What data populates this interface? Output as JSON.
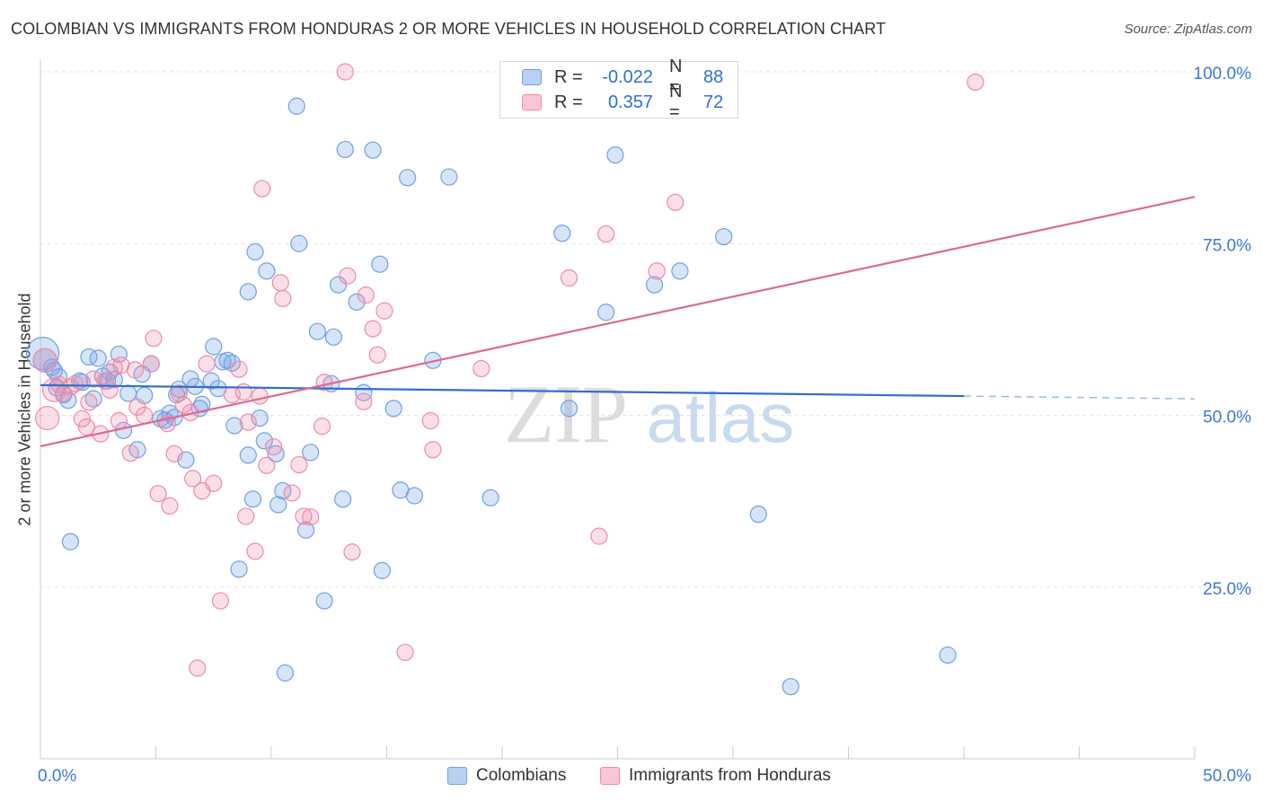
{
  "title": "COLOMBIAN VS IMMIGRANTS FROM HONDURAS 2 OR MORE VEHICLES IN HOUSEHOLD CORRELATION CHART",
  "source": "Source: ZipAtlas.com",
  "watermark": {
    "part1": "ZIP",
    "part2": "atlas"
  },
  "legend": {
    "rows": [
      {
        "r_label": "R =",
        "r_value": "-0.022",
        "n_label": "N =",
        "n_value": "88",
        "color": "#6fa0e8"
      },
      {
        "r_label": "R =",
        "r_value": "0.357",
        "n_label": "N =",
        "n_value": "72",
        "color": "#f08aa8"
      }
    ]
  },
  "bottom_legend": {
    "series1": "Colombians",
    "series2": "Immigrants from Honduras"
  },
  "chart_data": {
    "type": "scatter",
    "title": "COLOMBIAN VS IMMIGRANTS FROM HONDURAS 2 OR MORE VEHICLES IN HOUSEHOLD CORRELATION CHART",
    "xlabel": "",
    "ylabel": "2 or more Vehicles in Household",
    "xlim": [
      0,
      50
    ],
    "ylim": [
      0,
      104
    ],
    "x_tick_labels": [
      "0.0%",
      "50.0%"
    ],
    "y_ticks": [
      25,
      50,
      75,
      100
    ],
    "y_tick_labels": [
      "25.0%",
      "50.0%",
      "75.0%",
      "100.0%"
    ],
    "grid": true,
    "series": [
      {
        "name": "Colombians",
        "color": "#6fa0e8",
        "trend": {
          "x0": 0,
          "y0": 54.4,
          "x1": 40,
          "y1": 52.8,
          "dash_to_x": 50,
          "dash_to_y": 52.4
        },
        "points": [
          [
            0.1,
            59.0,
            3
          ],
          [
            0.2,
            58.0,
            2
          ],
          [
            0.5,
            57.0,
            1
          ],
          [
            0.6,
            56.5,
            1
          ],
          [
            0.8,
            55.6,
            1
          ],
          [
            1.0,
            53.0,
            1
          ],
          [
            1.2,
            52.2,
            1
          ],
          [
            1.3,
            31.6,
            1
          ],
          [
            1.7,
            55.0,
            1
          ],
          [
            1.8,
            54.8,
            1
          ],
          [
            2.1,
            58.5,
            1
          ],
          [
            2.3,
            52.4,
            1
          ],
          [
            2.5,
            58.3,
            1
          ],
          [
            2.7,
            55.7,
            1
          ],
          [
            3.0,
            56.3,
            1
          ],
          [
            3.2,
            55.2,
            1
          ],
          [
            3.4,
            58.9,
            1
          ],
          [
            3.6,
            47.8,
            1
          ],
          [
            3.8,
            53.2,
            1
          ],
          [
            4.2,
            45.0,
            1
          ],
          [
            4.4,
            56.0,
            1
          ],
          [
            4.5,
            52.9,
            1
          ],
          [
            4.8,
            57.5,
            1
          ],
          [
            5.2,
            49.5,
            1
          ],
          [
            5.4,
            49.3,
            1
          ],
          [
            5.6,
            50.3,
            1
          ],
          [
            5.8,
            49.7,
            1
          ],
          [
            5.9,
            53.0,
            1
          ],
          [
            6.0,
            53.8,
            1
          ],
          [
            6.3,
            43.5,
            1
          ],
          [
            6.5,
            55.3,
            1
          ],
          [
            6.7,
            54.2,
            1
          ],
          [
            6.9,
            51.0,
            1
          ],
          [
            7.0,
            51.6,
            1
          ],
          [
            7.4,
            55.0,
            1
          ],
          [
            7.5,
            60.0,
            1
          ],
          [
            7.7,
            53.9,
            1
          ],
          [
            7.9,
            57.8,
            1
          ],
          [
            8.1,
            58.0,
            1
          ],
          [
            8.3,
            57.6,
            1
          ],
          [
            8.4,
            48.5,
            1
          ],
          [
            8.6,
            27.6,
            1
          ],
          [
            9.0,
            68.0,
            1
          ],
          [
            9.2,
            37.8,
            1
          ],
          [
            9.0,
            44.2,
            1
          ],
          [
            9.3,
            73.8,
            1
          ],
          [
            9.5,
            49.6,
            1
          ],
          [
            9.8,
            71.0,
            1
          ],
          [
            9.7,
            46.3,
            1
          ],
          [
            10.2,
            44.4,
            1
          ],
          [
            10.3,
            37.0,
            1
          ],
          [
            10.5,
            39.0,
            1
          ],
          [
            10.6,
            12.5,
            1
          ],
          [
            11.1,
            95.0,
            1
          ],
          [
            11.2,
            75.0,
            1
          ],
          [
            11.5,
            33.3,
            1
          ],
          [
            11.7,
            44.6,
            1
          ],
          [
            12.0,
            62.2,
            1
          ],
          [
            12.3,
            23.0,
            1
          ],
          [
            12.6,
            54.6,
            1
          ],
          [
            12.7,
            61.4,
            1
          ],
          [
            12.9,
            69.0,
            1
          ],
          [
            13.1,
            37.8,
            1
          ],
          [
            13.2,
            88.7,
            1
          ],
          [
            13.7,
            66.5,
            1
          ],
          [
            14.0,
            53.3,
            1
          ],
          [
            14.4,
            88.6,
            1
          ],
          [
            14.7,
            72.0,
            1
          ],
          [
            14.8,
            27.4,
            1
          ],
          [
            15.3,
            51.0,
            1
          ],
          [
            15.6,
            39.1,
            1
          ],
          [
            15.9,
            84.6,
            1
          ],
          [
            16.2,
            38.3,
            1
          ],
          [
            17.0,
            58.0,
            1
          ],
          [
            17.7,
            84.7,
            1
          ],
          [
            19.5,
            38.0,
            1
          ],
          [
            22.6,
            76.5,
            1
          ],
          [
            22.9,
            51.0,
            1
          ],
          [
            24.5,
            65.0,
            1
          ],
          [
            24.9,
            87.9,
            1
          ],
          [
            26.6,
            69.0,
            1
          ],
          [
            27.7,
            71.0,
            1
          ],
          [
            29.6,
            76.0,
            1
          ],
          [
            31.1,
            35.6,
            1
          ],
          [
            32.5,
            10.5,
            1
          ],
          [
            39.3,
            15.1,
            1
          ],
          [
            0.7,
            54.0,
            1
          ],
          [
            2.9,
            55.0,
            1
          ]
        ]
      },
      {
        "name": "Immigrants from Honduras",
        "color": "#f08aa8",
        "trend": {
          "x0": 0,
          "y0": 45.5,
          "x1": 50,
          "y1": 81.8
        },
        "points": [
          [
            0.2,
            58.0,
            2
          ],
          [
            0.3,
            49.6,
            2
          ],
          [
            0.6,
            53.7,
            2
          ],
          [
            0.8,
            54.5,
            1
          ],
          [
            1.0,
            53.2,
            1
          ],
          [
            1.3,
            54.1,
            1
          ],
          [
            1.8,
            49.5,
            1
          ],
          [
            2.0,
            48.3,
            1
          ],
          [
            2.3,
            55.3,
            1
          ],
          [
            2.6,
            47.3,
            1
          ],
          [
            2.8,
            55.0,
            1
          ],
          [
            3.0,
            53.7,
            1
          ],
          [
            3.2,
            57.0,
            1
          ],
          [
            3.4,
            49.2,
            1
          ],
          [
            3.5,
            57.3,
            1
          ],
          [
            3.9,
            44.5,
            1
          ],
          [
            4.1,
            56.6,
            1
          ],
          [
            4.2,
            51.2,
            1
          ],
          [
            4.5,
            50.0,
            1
          ],
          [
            4.8,
            57.5,
            1
          ],
          [
            4.9,
            61.2,
            1
          ],
          [
            5.1,
            38.6,
            1
          ],
          [
            5.5,
            48.8,
            1
          ],
          [
            5.6,
            36.8,
            1
          ],
          [
            5.8,
            44.4,
            1
          ],
          [
            6.0,
            53.2,
            1
          ],
          [
            6.2,
            51.5,
            1
          ],
          [
            6.5,
            50.4,
            1
          ],
          [
            6.6,
            40.8,
            1
          ],
          [
            6.8,
            13.2,
            1
          ],
          [
            7.0,
            39.0,
            1
          ],
          [
            7.2,
            57.5,
            1
          ],
          [
            7.5,
            40.1,
            1
          ],
          [
            7.8,
            23.0,
            1
          ],
          [
            8.3,
            53.0,
            1
          ],
          [
            8.6,
            56.7,
            1
          ],
          [
            8.9,
            35.3,
            1
          ],
          [
            8.8,
            53.4,
            1
          ],
          [
            9.3,
            30.2,
            1
          ],
          [
            9.5,
            52.8,
            1
          ],
          [
            9.6,
            83.0,
            1
          ],
          [
            9.8,
            42.7,
            1
          ],
          [
            10.1,
            45.4,
            1
          ],
          [
            10.4,
            69.3,
            1
          ],
          [
            10.5,
            67.0,
            1
          ],
          [
            10.9,
            38.7,
            1
          ],
          [
            11.2,
            42.8,
            1
          ],
          [
            11.4,
            35.3,
            1
          ],
          [
            11.7,
            35.2,
            1
          ],
          [
            12.2,
            48.4,
            1
          ],
          [
            12.3,
            54.8,
            1
          ],
          [
            13.2,
            100.0,
            1
          ],
          [
            13.3,
            70.3,
            1
          ],
          [
            13.5,
            30.1,
            1
          ],
          [
            14.1,
            67.5,
            1
          ],
          [
            14.4,
            62.6,
            1
          ],
          [
            14.6,
            58.8,
            1
          ],
          [
            14.9,
            65.2,
            1
          ],
          [
            15.8,
            15.5,
            1
          ],
          [
            16.9,
            49.2,
            1
          ],
          [
            17.0,
            45.0,
            1
          ],
          [
            19.1,
            56.8,
            1
          ],
          [
            22.9,
            70.0,
            1
          ],
          [
            24.2,
            32.4,
            1
          ],
          [
            24.5,
            76.4,
            1
          ],
          [
            26.7,
            71.0,
            1
          ],
          [
            27.5,
            81.0,
            1
          ],
          [
            40.5,
            98.5,
            1
          ],
          [
            1.5,
            54.6,
            1
          ],
          [
            2.1,
            51.9,
            1
          ],
          [
            9.0,
            49.0,
            1
          ],
          [
            14.0,
            52.0,
            1
          ]
        ]
      }
    ]
  }
}
